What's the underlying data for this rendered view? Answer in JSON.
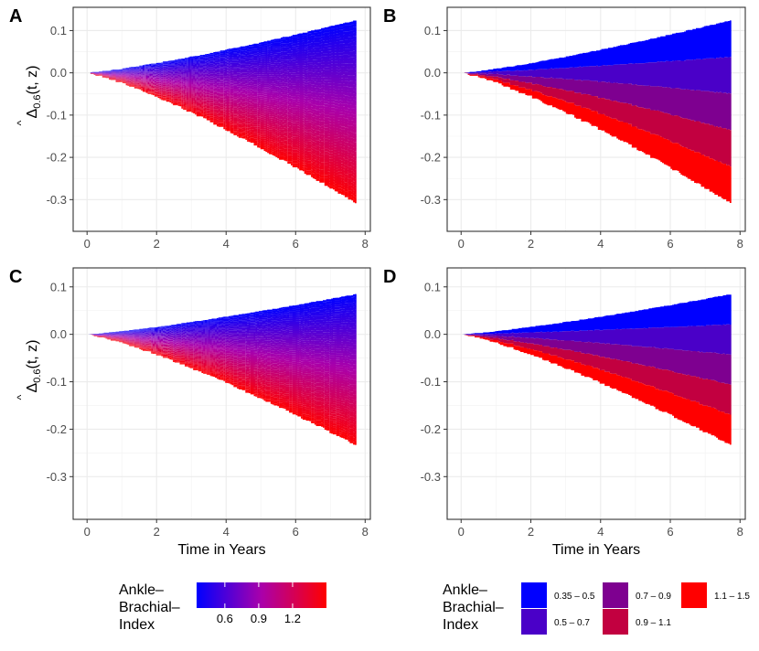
{
  "figure": {
    "x_axis_title": "Time in Years",
    "y_axis_title_main": "Δ",
    "y_axis_title_hat": "^",
    "y_axis_title_sub": "0.6",
    "y_axis_title_rest": "(t, z)"
  },
  "chart_data": [
    {
      "panel": "A",
      "type": "area",
      "fill": "continuous",
      "t_max": 7.75,
      "upper_end": 0.125,
      "lower_end": -0.31,
      "xlim": [
        -0.4,
        8.15
      ],
      "ylim": [
        -0.375,
        0.155
      ],
      "xticks": [
        0,
        2,
        4,
        6,
        8
      ],
      "yticks": [
        0.1,
        0.0,
        -0.1,
        -0.2,
        -0.3
      ],
      "xtick_labels": [
        "0",
        "2",
        "4",
        "6",
        "8"
      ],
      "ytick_labels": [
        "0.1",
        "0.0",
        "-0.1",
        "-0.2",
        "-0.3"
      ]
    },
    {
      "panel": "B",
      "type": "area",
      "fill": "banded",
      "t_max": 7.75,
      "upper_end": 0.125,
      "lower_end": -0.31,
      "xlim": [
        -0.4,
        8.15
      ],
      "ylim": [
        -0.375,
        0.155
      ],
      "xticks": [
        0,
        2,
        4,
        6,
        8
      ],
      "yticks": [
        0.1,
        0.0,
        -0.1,
        -0.2,
        -0.3
      ],
      "xtick_labels": [
        "0",
        "2",
        "4",
        "6",
        "8"
      ],
      "ytick_labels": [
        "0.1",
        "0.0",
        "-0.1",
        "-0.2",
        "-0.3"
      ]
    },
    {
      "panel": "C",
      "type": "area",
      "fill": "continuous",
      "t_max": 7.75,
      "upper_end": 0.085,
      "lower_end": -0.235,
      "xlim": [
        -0.4,
        8.15
      ],
      "ylim": [
        -0.39,
        0.14
      ],
      "xticks": [
        0,
        2,
        4,
        6,
        8
      ],
      "yticks": [
        0.1,
        0.0,
        -0.1,
        -0.2,
        -0.3
      ],
      "xtick_labels": [
        "0",
        "2",
        "4",
        "6",
        "8"
      ],
      "ytick_labels": [
        "0.1",
        "0.0",
        "-0.1",
        "-0.2",
        "-0.3"
      ]
    },
    {
      "panel": "D",
      "type": "area",
      "fill": "banded",
      "t_max": 7.75,
      "upper_end": 0.085,
      "lower_end": -0.235,
      "xlim": [
        -0.4,
        8.15
      ],
      "ylim": [
        -0.39,
        0.14
      ],
      "xticks": [
        0,
        2,
        4,
        6,
        8
      ],
      "yticks": [
        0.1,
        0.0,
        -0.1,
        -0.2,
        -0.3
      ],
      "xtick_labels": [
        "0",
        "2",
        "4",
        "6",
        "8"
      ],
      "ytick_labels": [
        "0.1",
        "0.0",
        "-0.1",
        "-0.2",
        "-0.3"
      ]
    }
  ],
  "legend_continuous": {
    "title_lines": [
      "Ankle–",
      "Brachial–",
      "Index"
    ],
    "range": [
      0.35,
      1.5
    ],
    "ticks": [
      0.6,
      0.9,
      1.2
    ],
    "tick_labels": [
      "0.6",
      "0.9",
      "1.2"
    ],
    "color_low": "#0000ff",
    "color_mid": "#aa00aa",
    "color_high": "#ff0000"
  },
  "legend_discrete": {
    "title_lines": [
      "Ankle–",
      "Brachial–",
      "Index"
    ],
    "bins": [
      {
        "label": "0.35 – 0.5",
        "color": "#0000ff",
        "frac": 0.0
      },
      {
        "label": "0.5 – 0.7",
        "color": "#4a00c8",
        "frac": 0.25
      },
      {
        "label": "0.7 – 0.9",
        "color": "#7e0090",
        "frac": 0.5
      },
      {
        "label": "0.9 – 1.1",
        "color": "#c20040",
        "frac": 0.75
      },
      {
        "label": "1.1 – 1.5",
        "color": "#ff0000",
        "frac": 1.0
      }
    ]
  }
}
